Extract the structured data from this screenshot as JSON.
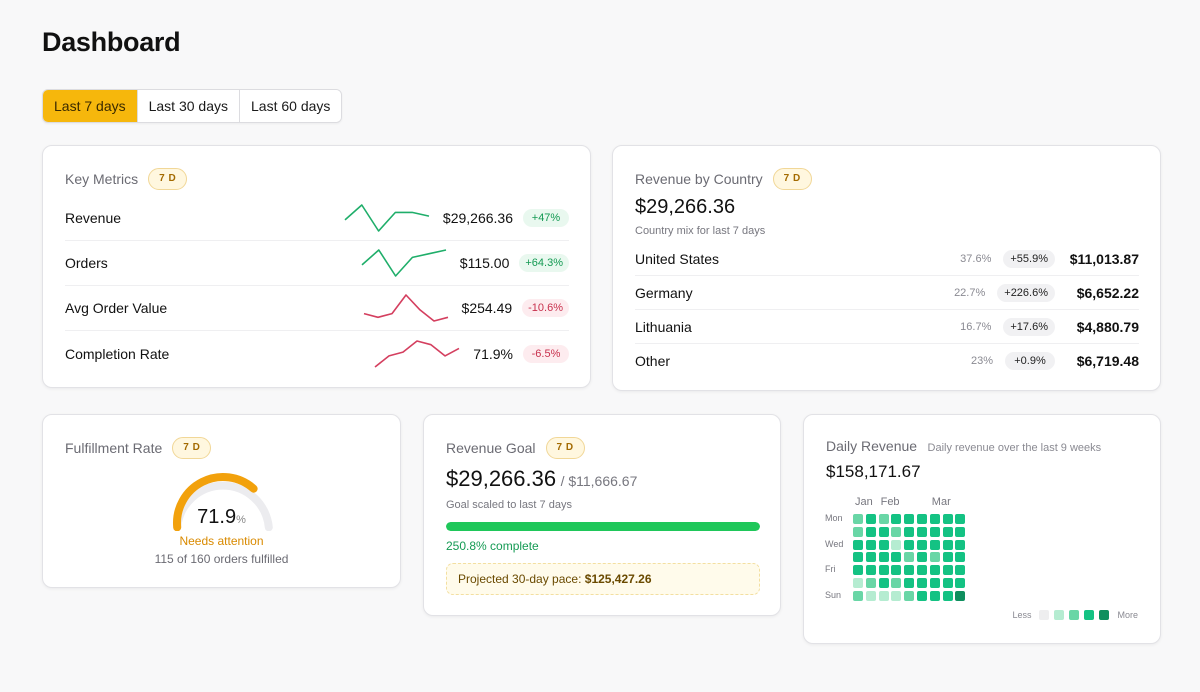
{
  "page": {
    "title": "Dashboard"
  },
  "range_tabs": [
    {
      "label": "Last 7 days",
      "active": true
    },
    {
      "label": "Last 30 days",
      "active": false
    },
    {
      "label": "Last 60 days",
      "active": false
    }
  ],
  "key_metrics": {
    "title": "Key Metrics",
    "badge": "7 D",
    "rows": [
      {
        "label": "Revenue",
        "value": "$29,266.36",
        "change": "+47%",
        "trend": "up",
        "spark": [
          4,
          8,
          1,
          6,
          6,
          5
        ]
      },
      {
        "label": "Orders",
        "value": "$115.00",
        "change": "+64.3%",
        "trend": "up",
        "spark": [
          4,
          8,
          1,
          6,
          7,
          8
        ]
      },
      {
        "label": "Avg Order Value",
        "value": "$254.49",
        "change": "-10.6%",
        "trend": "down",
        "spark": [
          3,
          2,
          3,
          8,
          4,
          1,
          2
        ]
      },
      {
        "label": "Completion Rate",
        "value": "71.9%",
        "change": "-6.5%",
        "trend": "down",
        "spark": [
          1,
          4,
          5,
          8,
          7,
          4,
          6
        ]
      }
    ]
  },
  "revenue_by_country": {
    "title": "Revenue by Country",
    "badge": "7 D",
    "total": "$29,266.36",
    "subtitle": "Country mix for last 7 days",
    "rows": [
      {
        "country": "United States",
        "share": "37.6%",
        "change": "+55.9%",
        "amount": "$11,013.87"
      },
      {
        "country": "Germany",
        "share": "22.7%",
        "change": "+226.6%",
        "amount": "$6,652.22"
      },
      {
        "country": "Lithuania",
        "share": "16.7%",
        "change": "+17.6%",
        "amount": "$4,880.79"
      },
      {
        "country": "Other",
        "share": "23%",
        "change": "+0.9%",
        "amount": "$6,719.48"
      }
    ]
  },
  "fulfillment": {
    "title": "Fulfillment Rate",
    "badge": "7 D",
    "value": "71.9",
    "unit": "%",
    "rate": 0.719,
    "status": "Needs attention",
    "detail": "115 of 160 orders fulfilled"
  },
  "revenue_goal": {
    "title": "Revenue Goal",
    "badge": "7 D",
    "value": "$29,266.36",
    "goal": "/ $11,666.67",
    "subtitle": "Goal scaled to last 7 days",
    "progress": 2.508,
    "complete_label": "250.8% complete",
    "pace_label": "Projected 30-day pace:",
    "pace_value": "$125,427.26"
  },
  "daily_revenue": {
    "title": "Daily Revenue",
    "subtitle": "Daily revenue over the last 9 weeks",
    "total": "$158,171.67",
    "months": [
      {
        "label": "Jan",
        "week": 0
      },
      {
        "label": "Feb",
        "week": 2
      },
      {
        "label": "Mar",
        "week": 6
      }
    ],
    "day_labels": [
      {
        "label": "Mon",
        "day": 0
      },
      {
        "label": "Wed",
        "day": 2
      },
      {
        "label": "Fri",
        "day": 4
      },
      {
        "label": "Sun",
        "day": 6
      }
    ],
    "levels": [
      [
        2,
        3,
        2,
        3,
        3,
        3,
        3,
        3,
        3
      ],
      [
        2,
        3,
        3,
        2,
        3,
        3,
        3,
        3,
        3
      ],
      [
        3,
        3,
        3,
        1,
        3,
        3,
        3,
        3,
        3
      ],
      [
        3,
        3,
        3,
        3,
        2,
        3,
        2,
        3,
        3
      ],
      [
        3,
        3,
        3,
        3,
        3,
        3,
        3,
        3,
        3
      ],
      [
        1,
        2,
        3,
        2,
        3,
        3,
        3,
        3,
        3
      ],
      [
        2,
        1,
        1,
        1,
        2,
        3,
        3,
        3,
        4
      ]
    ],
    "legend_less": "Less",
    "legend_more": "More"
  },
  "colors": {
    "accent": "#f6b70c",
    "up": "#1fae6a",
    "down": "#d43f5f",
    "gauge": "#f2a10c",
    "gauge_track": "#ececef",
    "status": "#d98a00",
    "progress": "#1fc75a",
    "heat_levels": [
      "#eeeeef",
      "#b5ecd1",
      "#69d6a6",
      "#14c283",
      "#0f8f5e"
    ]
  }
}
